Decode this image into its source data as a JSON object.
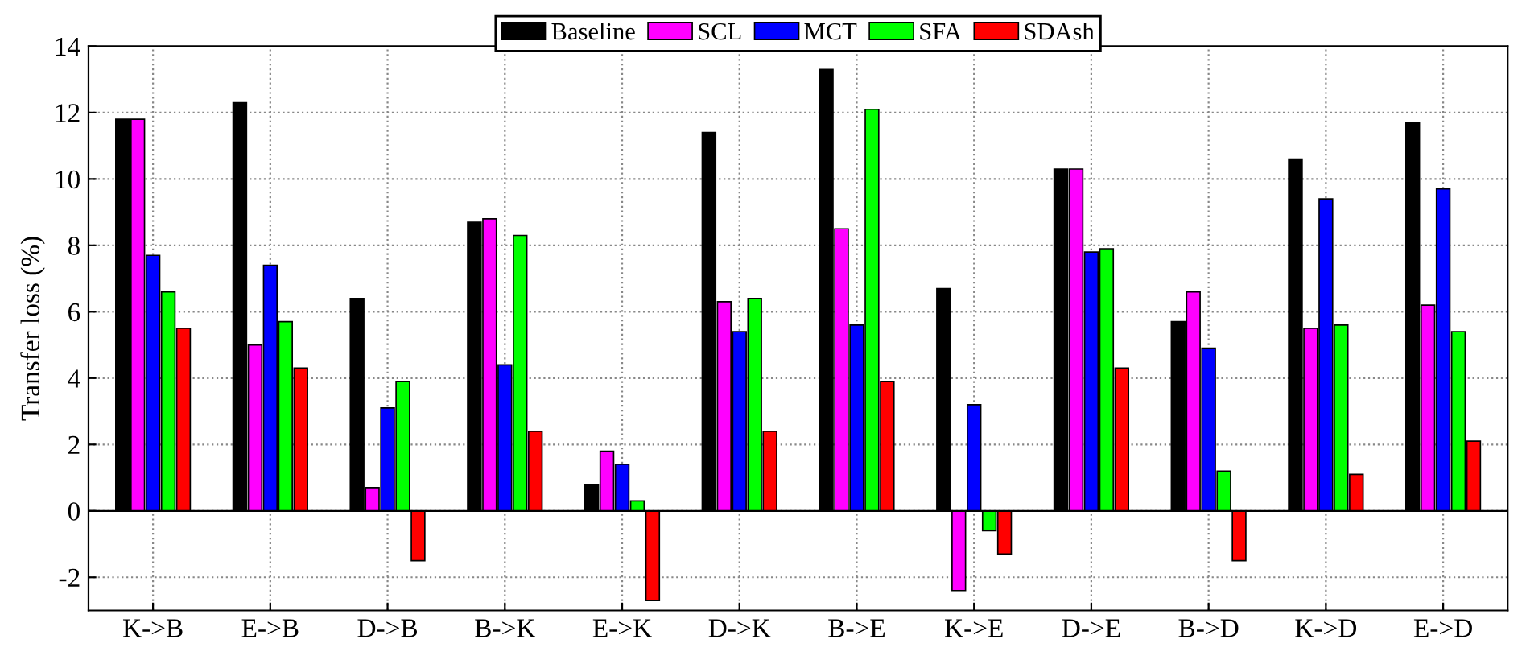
{
  "chart_data": {
    "type": "bar",
    "ylabel": "Transfer loss (%)",
    "categories": [
      "K->B",
      "E->B",
      "D->B",
      "B->K",
      "E->K",
      "D->K",
      "B->E",
      "K->E",
      "D->E",
      "B->D",
      "K->D",
      "E->D"
    ],
    "series": [
      {
        "name": "Baseline",
        "color": "#000000",
        "values": [
          11.8,
          12.3,
          6.4,
          8.7,
          0.8,
          11.4,
          13.3,
          6.7,
          10.3,
          5.7,
          10.6,
          11.7
        ]
      },
      {
        "name": "SCL",
        "color": "#ff00ff",
        "values": [
          11.8,
          5.0,
          0.7,
          8.8,
          1.8,
          6.3,
          8.5,
          -2.4,
          10.3,
          6.6,
          5.5,
          6.2
        ]
      },
      {
        "name": "MCT",
        "color": "#0000ff",
        "values": [
          7.7,
          7.4,
          3.1,
          4.4,
          1.4,
          5.4,
          5.6,
          3.2,
          7.8,
          4.9,
          9.4,
          9.7
        ]
      },
      {
        "name": "SFA",
        "color": "#00ff00",
        "values": [
          6.6,
          5.7,
          3.9,
          8.3,
          0.3,
          6.4,
          12.1,
          -0.6,
          7.9,
          1.2,
          5.6,
          5.4
        ]
      },
      {
        "name": "SDAsh",
        "color": "#ff0000",
        "values": [
          5.5,
          4.3,
          -1.5,
          2.4,
          -2.7,
          2.4,
          3.9,
          -1.3,
          4.3,
          -1.5,
          1.1,
          2.1
        ]
      }
    ],
    "ylim": [
      -3,
      14
    ],
    "yticks": [
      -2,
      0,
      2,
      4,
      6,
      8,
      10,
      12,
      14
    ],
    "grid": true,
    "legend": "top"
  }
}
